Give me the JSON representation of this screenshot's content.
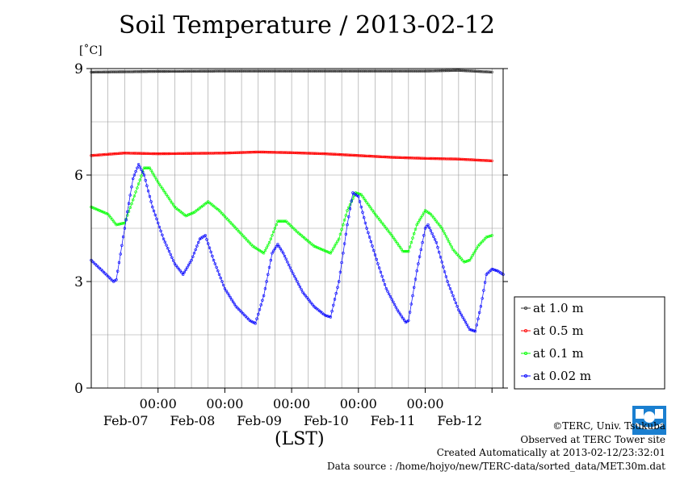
{
  "title": "Soil Temperature / 2013-02-12",
  "unit_label": "[˚C]",
  "xaxis_label": "(LST)",
  "credits": {
    "line1": "©TERC, Univ. Tsukuba",
    "line2": "Observed at TERC Tower site",
    "line3": "Created Automatically at 2013-02-12/23:32:01",
    "line4": "Data source : /home/hojyo/new/TERC-data/sorted_data/MET.30m.dat"
  },
  "logo_text": "TERC",
  "chart_data": {
    "type": "line",
    "title": "Soil Temperature / 2013-02-12",
    "ylabel": "[˚C]",
    "xlabel": "(LST)",
    "ylim": [
      0,
      9
    ],
    "xlim_hours": [
      0,
      144
    ],
    "yticks": [
      0,
      3,
      6,
      9
    ],
    "xticks": [
      {
        "hour": 24,
        "time": "00:00",
        "date": "Feb-07"
      },
      {
        "hour": 48,
        "time": "00:00",
        "date": "Feb-08"
      },
      {
        "hour": 72,
        "time": "00:00",
        "date": "Feb-09"
      },
      {
        "hour": 96,
        "time": "00:00",
        "date": "Feb-10"
      },
      {
        "hour": 120,
        "time": "00:00",
        "date": "Feb-11"
      },
      {
        "hour": 144,
        "time": "",
        "date": "Feb-12"
      }
    ],
    "grid": true,
    "legend_position": "right",
    "colors": {
      "at_1_0": "#333333",
      "at_0_5": "#ff0000",
      "at_0_1": "#00ff00",
      "at_0_02": "#0000ff"
    },
    "series": [
      {
        "name": "at 1.0 m",
        "color": "#333333",
        "points": [
          [
            0,
            8.9
          ],
          [
            24,
            8.92
          ],
          [
            48,
            8.93
          ],
          [
            72,
            8.93
          ],
          [
            96,
            8.93
          ],
          [
            120,
            8.93
          ],
          [
            132,
            8.95
          ],
          [
            144,
            8.9
          ]
        ]
      },
      {
        "name": "at 0.5 m",
        "color": "#ff0000",
        "points": [
          [
            0,
            6.55
          ],
          [
            12,
            6.62
          ],
          [
            24,
            6.6
          ],
          [
            48,
            6.62
          ],
          [
            60,
            6.65
          ],
          [
            72,
            6.63
          ],
          [
            84,
            6.6
          ],
          [
            96,
            6.55
          ],
          [
            108,
            6.5
          ],
          [
            120,
            6.47
          ],
          [
            132,
            6.45
          ],
          [
            144,
            6.4
          ]
        ]
      },
      {
        "name": "at 0.1 m",
        "color": "#00ff00",
        "points": [
          [
            0,
            5.1
          ],
          [
            6,
            4.9
          ],
          [
            9,
            4.6
          ],
          [
            12,
            4.65
          ],
          [
            15,
            5.3
          ],
          [
            19,
            6.2
          ],
          [
            21,
            6.2
          ],
          [
            24,
            5.8
          ],
          [
            30,
            5.1
          ],
          [
            34,
            4.85
          ],
          [
            37,
            4.95
          ],
          [
            42,
            5.25
          ],
          [
            46,
            5.0
          ],
          [
            52,
            4.5
          ],
          [
            58,
            4.0
          ],
          [
            62,
            3.8
          ],
          [
            64,
            4.1
          ],
          [
            67,
            4.7
          ],
          [
            70,
            4.7
          ],
          [
            74,
            4.4
          ],
          [
            80,
            4.0
          ],
          [
            86,
            3.8
          ],
          [
            89,
            4.2
          ],
          [
            92,
            5.0
          ],
          [
            95,
            5.5
          ],
          [
            97,
            5.45
          ],
          [
            102,
            4.9
          ],
          [
            108,
            4.3
          ],
          [
            112,
            3.85
          ],
          [
            114,
            3.85
          ],
          [
            117,
            4.6
          ],
          [
            120,
            5.0
          ],
          [
            122,
            4.9
          ],
          [
            126,
            4.5
          ],
          [
            130,
            3.9
          ],
          [
            134,
            3.55
          ],
          [
            136,
            3.6
          ],
          [
            139,
            4.0
          ],
          [
            142,
            4.25
          ],
          [
            144,
            4.3
          ]
        ]
      },
      {
        "name": "at 0.02 m",
        "color": "#0000ff",
        "points": [
          [
            0,
            3.6
          ],
          [
            4,
            3.3
          ],
          [
            8,
            3.0
          ],
          [
            9,
            3.05
          ],
          [
            12,
            4.5
          ],
          [
            15,
            5.9
          ],
          [
            17,
            6.3
          ],
          [
            19,
            6.0
          ],
          [
            22,
            5.1
          ],
          [
            26,
            4.2
          ],
          [
            30,
            3.5
          ],
          [
            33,
            3.2
          ],
          [
            36,
            3.6
          ],
          [
            39,
            4.2
          ],
          [
            41,
            4.3
          ],
          [
            44,
            3.6
          ],
          [
            48,
            2.8
          ],
          [
            52,
            2.3
          ],
          [
            57,
            1.9
          ],
          [
            59,
            1.82
          ],
          [
            62,
            2.6
          ],
          [
            65,
            3.8
          ],
          [
            67,
            4.05
          ],
          [
            69,
            3.8
          ],
          [
            72,
            3.3
          ],
          [
            76,
            2.7
          ],
          [
            80,
            2.3
          ],
          [
            84,
            2.05
          ],
          [
            86,
            2.0
          ],
          [
            89,
            3.0
          ],
          [
            92,
            4.6
          ],
          [
            94,
            5.5
          ],
          [
            96,
            5.4
          ],
          [
            99,
            4.5
          ],
          [
            103,
            3.5
          ],
          [
            106,
            2.8
          ],
          [
            110,
            2.2
          ],
          [
            113,
            1.85
          ],
          [
            114,
            1.9
          ],
          [
            117,
            3.3
          ],
          [
            120,
            4.5
          ],
          [
            121,
            4.6
          ],
          [
            124,
            4.1
          ],
          [
            128,
            3.0
          ],
          [
            132,
            2.2
          ],
          [
            136,
            1.65
          ],
          [
            138,
            1.6
          ],
          [
            140,
            2.3
          ],
          [
            142,
            3.2
          ],
          [
            144,
            3.35
          ],
          [
            146,
            3.3
          ],
          [
            148,
            3.2
          ]
        ]
      }
    ]
  }
}
